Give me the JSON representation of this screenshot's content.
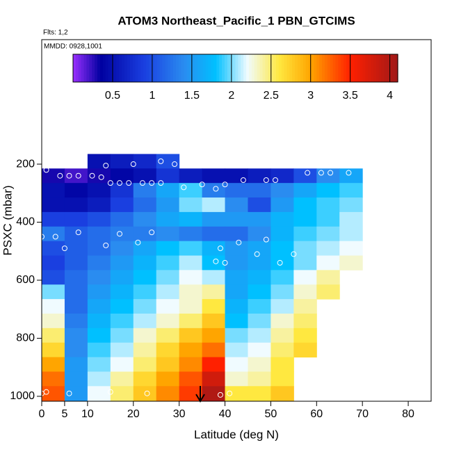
{
  "chart_data": {
    "type": "heatmap",
    "title": "ATOM3 Northeast_Pacific_1 PBN_GTCIMS",
    "subtitle": "Flts: 1,2",
    "annotation": "MMDD: 0928,1001",
    "xlabel": "Latitude (deg N)",
    "ylabel": "PSXC (mbar)",
    "xlim": [
      0,
      85
    ],
    "ylim": [
      1017,
      -229
    ],
    "xticks": [
      0,
      5,
      10,
      20,
      30,
      40,
      50,
      60,
      70,
      80
    ],
    "yticks": [
      200,
      400,
      600,
      800,
      1000
    ],
    "x_edges": [
      0,
      5,
      10,
      15,
      20,
      25,
      30,
      35,
      40,
      45,
      50,
      55,
      60,
      65,
      70
    ],
    "y_edges": [
      165,
      215,
      265,
      315,
      365,
      415,
      465,
      515,
      565,
      615,
      665,
      715,
      765,
      815,
      865,
      915,
      965,
      1015
    ],
    "values": [
      [
        null,
        null,
        0.5,
        0.6,
        0.7,
        1.0,
        null,
        null,
        null,
        null,
        null,
        null,
        null,
        null
      ],
      [
        0.3,
        0.2,
        0.3,
        0.4,
        0.5,
        0.8,
        0.6,
        0.5,
        0.5,
        0.6,
        0.7,
        1.0,
        1.4,
        1.6
      ],
      [
        0.5,
        0.4,
        0.5,
        0.8,
        1.3,
        1.6,
        1.9,
        1.3,
        1.2,
        1.2,
        1.4,
        1.6,
        1.8,
        1.9
      ],
      [
        0.5,
        0.5,
        0.6,
        0.9,
        1.2,
        1.5,
        2.0,
        2.1,
        1.4,
        1.0,
        1.5,
        1.8,
        1.9,
        2.0
      ],
      [
        0.9,
        0.9,
        1.0,
        1.2,
        1.4,
        1.6,
        1.7,
        1.5,
        1.5,
        1.5,
        1.7,
        1.8,
        1.9,
        2.1
      ],
      [
        1.3,
        1.1,
        1.2,
        1.3,
        1.3,
        1.4,
        1.3,
        1.2,
        1.2,
        1.4,
        1.7,
        1.9,
        2.0,
        2.1
      ],
      [
        1.0,
        1.1,
        1.2,
        1.4,
        1.6,
        1.8,
        1.9,
        1.7,
        1.5,
        1.6,
        1.8,
        2.0,
        2.1,
        2.2
      ],
      [
        0.9,
        1.1,
        1.3,
        1.5,
        1.7,
        1.9,
        2.1,
        1.8,
        1.5,
        1.6,
        1.8,
        2.0,
        2.2,
        2.3
      ],
      [
        1.0,
        1.2,
        1.4,
        1.6,
        1.8,
        2.0,
        2.2,
        2.1,
        1.6,
        1.7,
        1.9,
        2.2,
        2.4,
        null
      ],
      [
        2.0,
        1.2,
        1.5,
        1.7,
        1.9,
        2.1,
        2.3,
        2.4,
        1.6,
        1.8,
        2.0,
        2.3,
        2.5,
        null
      ],
      [
        2.2,
        1.2,
        1.6,
        1.8,
        2.0,
        2.2,
        2.3,
        2.6,
        1.7,
        1.9,
        2.1,
        2.4,
        null,
        null
      ],
      [
        2.3,
        1.3,
        1.7,
        1.9,
        2.1,
        2.3,
        2.5,
        2.8,
        1.8,
        2.0,
        2.3,
        2.5,
        null,
        null
      ],
      [
        2.5,
        1.4,
        1.8,
        2.0,
        2.3,
        2.5,
        2.8,
        3.0,
        2.0,
        2.1,
        2.4,
        2.6,
        null,
        null
      ],
      [
        2.7,
        1.4,
        1.9,
        2.1,
        2.4,
        2.7,
        3.0,
        3.2,
        2.1,
        2.2,
        2.5,
        2.7,
        null,
        null
      ],
      [
        3.0,
        1.5,
        2.0,
        2.2,
        2.5,
        2.8,
        3.1,
        3.5,
        2.2,
        2.3,
        2.6,
        null,
        null,
        null
      ],
      [
        3.2,
        1.5,
        2.1,
        2.4,
        2.7,
        3.0,
        3.3,
        3.8,
        2.3,
        2.4,
        2.6,
        null,
        null,
        null
      ],
      [
        3.3,
        1.5,
        2.2,
        2.5,
        2.8,
        3.1,
        3.4,
        4.0,
        2.6,
        2.6,
        2.8,
        null,
        null,
        null
      ]
    ],
    "colormap": [
      {
        "value": 0,
        "color": "#9b30ff"
      },
      {
        "value": 0.35,
        "color": "#0000a0"
      },
      {
        "value": 0.9,
        "color": "#1a3fe0"
      },
      {
        "value": 1.4,
        "color": "#2a8cf0"
      },
      {
        "value": 1.8,
        "color": "#00c0ff"
      },
      {
        "value": 2.2,
        "color": "#f0fbff"
      },
      {
        "value": 2.6,
        "color": "#ffe840"
      },
      {
        "value": 3.0,
        "color": "#ffa500"
      },
      {
        "value": 3.5,
        "color": "#ff2000"
      },
      {
        "value": 4.1,
        "color": "#a01818"
      }
    ],
    "colorbar": {
      "lim": [
        0,
        4.1
      ],
      "ticks": [
        0.5,
        1.0,
        1.5,
        2.0,
        2.5,
        3.0,
        3.5,
        4.0
      ]
    },
    "points": {
      "lat": [
        1,
        4,
        6,
        8,
        11,
        13,
        14,
        15,
        17,
        19,
        20,
        22,
        24,
        26,
        26,
        29,
        31,
        35,
        38,
        40,
        44,
        49,
        51,
        58,
        61,
        63,
        67,
        0,
        3,
        5,
        8,
        14,
        17,
        21,
        24,
        39,
        38,
        40,
        43,
        47,
        49,
        52,
        55,
        1,
        0,
        6,
        15,
        23,
        39,
        41
      ],
      "p": [
        220,
        240,
        240,
        240,
        240,
        245,
        205,
        265,
        265,
        265,
        200,
        265,
        265,
        265,
        190,
        200,
        280,
        270,
        285,
        270,
        255,
        255,
        255,
        230,
        230,
        230,
        230,
        450,
        450,
        490,
        435,
        480,
        440,
        470,
        435,
        490,
        535,
        540,
        470,
        510,
        460,
        540,
        510,
        985,
        990,
        990,
        985,
        990,
        995,
        990
      ]
    }
  }
}
